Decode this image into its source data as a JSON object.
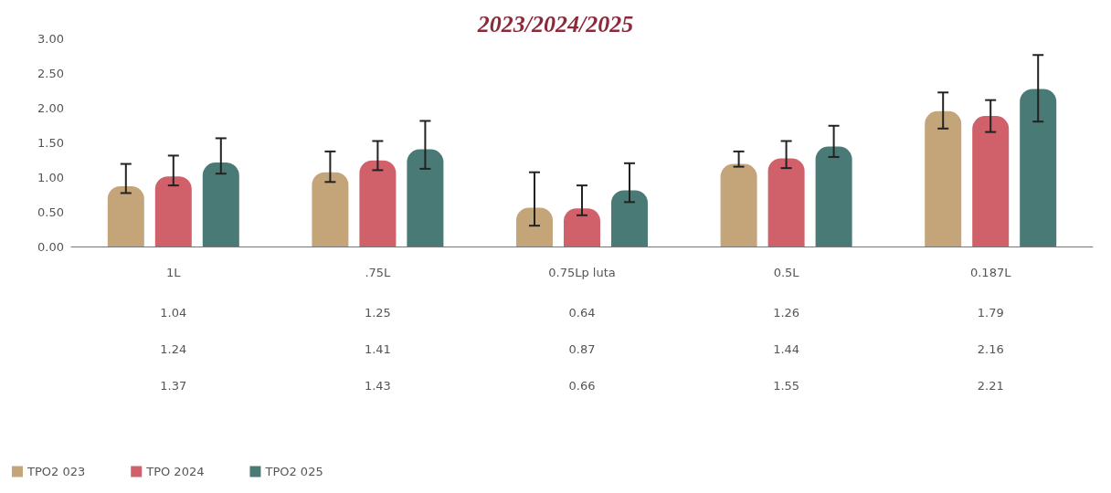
{
  "chart_data": {
    "type": "bar",
    "title": "2023/2024/2025",
    "categories": [
      "1L",
      ".75L",
      "0.75Lp luta",
      "0.5L",
      "0.187L"
    ],
    "series": [
      {
        "name": "TPO2 023",
        "color": "#c4a57a",
        "values": [
          0.87,
          1.07,
          0.56,
          1.19,
          1.95
        ],
        "errors": [
          [
            0.77,
            1.19
          ],
          [
            0.93,
            1.37
          ],
          [
            0.3,
            1.07
          ],
          [
            1.15,
            1.37
          ],
          [
            1.7,
            2.22
          ]
        ]
      },
      {
        "name": "TPO 2024",
        "color": "#d0606a",
        "values": [
          1.01,
          1.24,
          0.55,
          1.27,
          1.88
        ],
        "errors": [
          [
            0.88,
            1.31
          ],
          [
            1.1,
            1.52
          ],
          [
            0.45,
            0.88
          ],
          [
            1.13,
            1.52
          ],
          [
            1.65,
            2.11
          ]
        ]
      },
      {
        "name": "TPO2 025",
        "color": "#4a7a75",
        "values": [
          1.21,
          1.4,
          0.81,
          1.44,
          2.27
        ],
        "errors": [
          [
            1.05,
            1.56
          ],
          [
            1.12,
            1.81
          ],
          [
            0.64,
            1.2
          ],
          [
            1.29,
            1.74
          ],
          [
            1.8,
            2.76
          ]
        ]
      }
    ],
    "ylim": [
      0,
      3
    ],
    "yticks": [
      {
        "value": 0,
        "label": "0.00"
      },
      {
        "value": 0.5,
        "label": "0.50"
      },
      {
        "value": 1,
        "label": "1.00"
      },
      {
        "value": 1.5,
        "label": "1.50"
      },
      {
        "value": 2,
        "label": "2.00"
      },
      {
        "value": 2.5,
        "label": "2.50"
      },
      {
        "value": 3,
        "label": "3.00"
      }
    ],
    "grid": false,
    "legend": "bottom left",
    "annotations": [
      "1.04",
      "1.25",
      "0.64",
      "1.26",
      "1.79",
      "1.24",
      "1.41",
      "0.87",
      "1.44",
      "2.16",
      "1.37",
      "1.43",
      "0.66",
      "1.55",
      "2.21"
    ]
  }
}
